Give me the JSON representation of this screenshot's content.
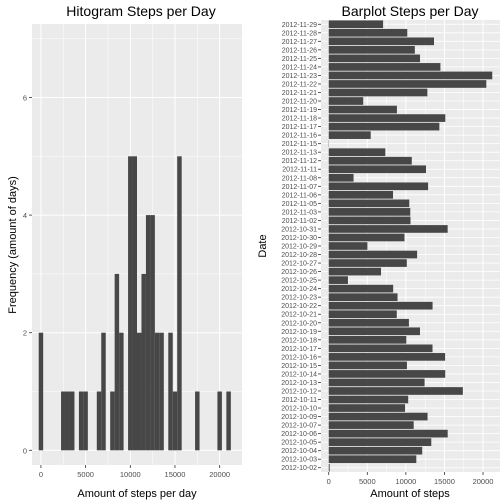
{
  "charts": [
    {
      "id": "histogram",
      "title": "Hitogram Steps per Day",
      "xlabel": "Amount of steps per day",
      "ylabel": "Frequency (amount of days)"
    },
    {
      "id": "barplot",
      "title": "Barplot Steps per Day",
      "xlabel": "Amount of steps",
      "ylabel": "Date"
    }
  ],
  "colors": {
    "panel_background": "#ebebeb",
    "grid_major": "#ffffff",
    "bar_fill": "#474747",
    "tick_text": "#4d4d4d"
  },
  "chart_data": [
    {
      "type": "bar",
      "title": "Hitogram Steps per Day",
      "xlabel": "Amount of steps per day",
      "ylabel": "Frequency (amount of days)",
      "binwidth": 500,
      "x_bin_centers": [
        0,
        2500,
        3000,
        3500,
        4500,
        5000,
        6500,
        7000,
        8000,
        8500,
        9000,
        10000,
        10500,
        11000,
        11500,
        12000,
        12500,
        13000,
        13500,
        14500,
        15000,
        15500,
        17500,
        20000,
        21000
      ],
      "values": [
        2,
        1,
        1,
        1,
        1,
        1,
        1,
        2,
        1,
        3,
        2,
        5,
        5,
        2,
        3,
        4,
        4,
        2,
        2,
        2,
        1,
        5,
        1,
        1,
        1
      ],
      "xlim": [
        -1000,
        22500
      ],
      "ylim": [
        -0.25,
        7.25
      ],
      "x_ticks": [
        0,
        5000,
        10000,
        15000,
        20000
      ],
      "y_ticks": [
        0,
        2,
        4,
        6
      ],
      "grid": true
    },
    {
      "type": "bar",
      "orientation": "horizontal",
      "title": "Barplot Steps per Day",
      "xlabel": "Amount of steps",
      "ylabel": "Date",
      "categories": [
        "2012-10-02",
        "2012-10-03",
        "2012-10-04",
        "2012-10-05",
        "2012-10-06",
        "2012-10-07",
        "2012-10-09",
        "2012-10-10",
        "2012-10-11",
        "2012-10-12",
        "2012-10-13",
        "2012-10-14",
        "2012-10-15",
        "2012-10-16",
        "2012-10-17",
        "2012-10-18",
        "2012-10-19",
        "2012-10-20",
        "2012-10-21",
        "2012-10-22",
        "2012-10-23",
        "2012-10-24",
        "2012-10-25",
        "2012-10-26",
        "2012-10-27",
        "2012-10-28",
        "2012-10-29",
        "2012-10-30",
        "2012-10-31",
        "2012-11-02",
        "2012-11-03",
        "2012-11-05",
        "2012-11-06",
        "2012-11-07",
        "2012-11-08",
        "2012-11-11",
        "2012-11-12",
        "2012-11-13",
        "2012-11-15",
        "2012-11-16",
        "2012-11-17",
        "2012-11-18",
        "2012-11-19",
        "2012-11-20",
        "2012-11-21",
        "2012-11-22",
        "2012-11-23",
        "2012-11-24",
        "2012-11-25",
        "2012-11-26",
        "2012-11-27",
        "2012-11-28",
        "2012-11-29"
      ],
      "values": [
        126,
        11352,
        12116,
        13294,
        15420,
        11015,
        12811,
        9900,
        10304,
        17382,
        12426,
        15098,
        10139,
        15084,
        13452,
        10056,
        11829,
        10395,
        8821,
        13460,
        8918,
        8355,
        2492,
        6778,
        10119,
        11458,
        5018,
        9819,
        15414,
        10600,
        10571,
        10439,
        8334,
        12883,
        3219,
        12608,
        10765,
        7336,
        41,
        5441,
        14339,
        15110,
        8841,
        4472,
        12787,
        20427,
        21194,
        14478,
        11834,
        11162,
        13646,
        10183,
        7047
      ],
      "xlim": [
        -1000,
        22200
      ],
      "x_ticks": [
        0,
        5000,
        10000,
        15000,
        20000
      ],
      "grid": true
    }
  ]
}
